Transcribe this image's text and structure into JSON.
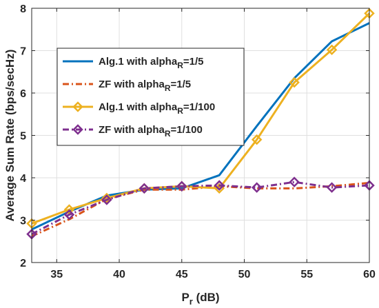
{
  "chart_data": {
    "type": "line",
    "title": "",
    "xlabel": {
      "main": "P",
      "sub": "r",
      "rest": " (dB)"
    },
    "ylabel": "Average Sum Rate (bps/secHz)",
    "xlim": [
      33,
      60
    ],
    "ylim": [
      2,
      8
    ],
    "xticks": [
      35,
      40,
      45,
      50,
      55,
      60
    ],
    "yticks": [
      2,
      3,
      4,
      5,
      6,
      7,
      8
    ],
    "grid": true,
    "legend_position": "top-left",
    "x": [
      33,
      36,
      39,
      42,
      45,
      48,
      51,
      54,
      57,
      60
    ],
    "series": [
      {
        "name": "Alg.1 with alpha",
        "name_sub": "R",
        "name_rest": "=1/5",
        "color": "#0072BD",
        "line": "solid",
        "marker": "none",
        "values": [
          2.78,
          3.2,
          3.58,
          3.72,
          3.75,
          4.06,
          5.22,
          6.35,
          7.22,
          7.65
        ]
      },
      {
        "name": "ZF with alpha",
        "name_sub": "R",
        "name_rest": "=1/5",
        "color": "#D95319",
        "line": "dashdot",
        "marker": "none",
        "values": [
          2.62,
          3.02,
          3.5,
          3.72,
          3.72,
          3.8,
          3.75,
          3.75,
          3.8,
          3.88
        ]
      },
      {
        "name": "Alg.1 with alpha",
        "name_sub": "R",
        "name_rest": "=1/100",
        "color": "#EDB120",
        "line": "solid",
        "marker": "diamond",
        "values": [
          2.92,
          3.25,
          3.52,
          3.75,
          3.8,
          3.75,
          4.9,
          6.25,
          7.02,
          7.88
        ]
      },
      {
        "name": "ZF with alpha",
        "name_sub": "R",
        "name_rest": "=1/100",
        "color": "#7E2F8E",
        "line": "dashdot",
        "marker": "diamond",
        "values": [
          2.67,
          3.13,
          3.48,
          3.75,
          3.8,
          3.82,
          3.77,
          3.9,
          3.77,
          3.82
        ]
      }
    ]
  }
}
